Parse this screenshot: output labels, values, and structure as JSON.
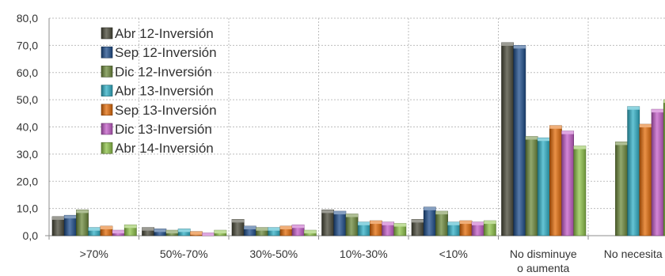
{
  "chart_data": {
    "type": "bar",
    "categories": [
      ">70%",
      "50%-70%",
      "30%-50%",
      "10%-30%",
      "<10%",
      "No disminuye o aumenta",
      "No necesita"
    ],
    "category_lines": [
      [
        ">70%"
      ],
      [
        "50%-70%"
      ],
      [
        "30%-50%"
      ],
      [
        "10%-30%"
      ],
      [
        "<10%"
      ],
      [
        "No disminuye",
        "o aumenta"
      ],
      [
        "No necesita"
      ]
    ],
    "series": [
      {
        "name": "Abr 12-Inversión",
        "color": "#4a4a3a",
        "values": [
          7.0,
          3.0,
          6.0,
          9.5,
          6.0,
          71.0,
          null
        ]
      },
      {
        "name": "Sep 12-Inversión",
        "color": "#1f4e8c",
        "values": [
          7.5,
          2.5,
          3.5,
          9.0,
          10.5,
          70.0,
          null
        ]
      },
      {
        "name": "Dic 12-Inversión",
        "color": "#6e8b3d",
        "values": [
          9.5,
          2.0,
          3.0,
          8.0,
          9.0,
          36.5,
          34.5
        ]
      },
      {
        "name": "Abr 13-Inversión",
        "color": "#31b0c7",
        "values": [
          3.0,
          2.5,
          3.0,
          5.0,
          5.0,
          36.0,
          47.5
        ]
      },
      {
        "name": "Sep 13-Inversión",
        "color": "#e36c0a",
        "values": [
          3.5,
          1.5,
          3.5,
          5.5,
          5.5,
          40.5,
          41.0
        ]
      },
      {
        "name": "Dic 13-Inversión",
        "color": "#c45ec8",
        "values": [
          2.0,
          1.0,
          4.0,
          5.0,
          5.0,
          38.5,
          46.5
        ]
      },
      {
        "name": "Abr 14-Inversión",
        "color": "#8fc34a",
        "values": [
          4.0,
          2.0,
          2.0,
          4.5,
          5.5,
          33.0,
          50.0
        ]
      }
    ],
    "yticks": [
      "0,0",
      "10,0",
      "20,0",
      "30,0",
      "40,0",
      "50,0",
      "60,0",
      "70,0",
      "80,0"
    ],
    "ylim": [
      0,
      80
    ],
    "grid": true,
    "legend_position": "top-left"
  }
}
